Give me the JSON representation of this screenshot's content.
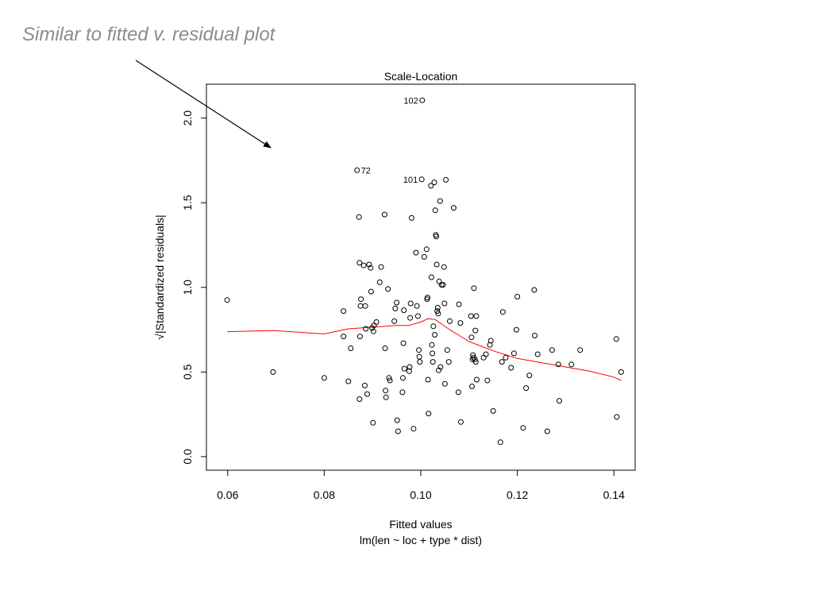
{
  "slide": {
    "title": "Similar to fitted v. residual plot"
  },
  "chart_data": {
    "type": "scatter",
    "title": "Scale-Location",
    "xlabel": "Fitted values",
    "subtitle": "lm(len ~ loc + type * dist)",
    "ylabel": "√|Standardized residuals|",
    "xlim": [
      0.0556,
      0.1444
    ],
    "ylim": [
      -0.08,
      2.2
    ],
    "x_ticks": [
      0.06,
      0.08,
      0.1,
      0.12,
      0.14
    ],
    "x_tick_labels": [
      "0.06",
      "0.08",
      "0.10",
      "0.12",
      "0.14"
    ],
    "y_ticks": [
      0.0,
      0.5,
      1.0,
      1.5,
      2.0
    ],
    "y_tick_labels": [
      "0.0",
      "0.5",
      "1.0",
      "1.5",
      "2.0"
    ],
    "grid": false,
    "point_color": "#000000",
    "smooth_color": "#ff0000",
    "annotations": [
      {
        "label": "102",
        "x": 0.1003,
        "y": 2.105
      },
      {
        "label": "72",
        "x": 0.0868,
        "y": 1.692
      },
      {
        "label": "101",
        "x": 0.1002,
        "y": 1.638
      }
    ],
    "points": [
      [
        0.0599,
        0.925
      ],
      [
        0.0694,
        0.5
      ],
      [
        0.08,
        0.465
      ],
      [
        0.084,
        0.86
      ],
      [
        0.084,
        0.71
      ],
      [
        0.085,
        0.445
      ],
      [
        0.0855,
        0.64
      ],
      [
        0.0868,
        1.692
      ],
      [
        0.0872,
        1.415
      ],
      [
        0.0873,
        1.145
      ],
      [
        0.0875,
        0.89
      ],
      [
        0.0876,
        0.93
      ],
      [
        0.0874,
        0.71
      ],
      [
        0.0873,
        0.34
      ],
      [
        0.0882,
        1.13
      ],
      [
        0.0885,
        0.89
      ],
      [
        0.0886,
        0.755
      ],
      [
        0.0884,
        0.42
      ],
      [
        0.0889,
        0.37
      ],
      [
        0.0893,
        1.135
      ],
      [
        0.0896,
        1.115
      ],
      [
        0.0897,
        0.975
      ],
      [
        0.0899,
        0.76
      ],
      [
        0.0902,
        0.74
      ],
      [
        0.0903,
        0.775
      ],
      [
        0.0901,
        0.2
      ],
      [
        0.0908,
        0.795
      ],
      [
        0.0915,
        1.03
      ],
      [
        0.0918,
        1.12
      ],
      [
        0.0925,
        1.43
      ],
      [
        0.0926,
        0.64
      ],
      [
        0.0927,
        0.39
      ],
      [
        0.0928,
        0.35
      ],
      [
        0.0932,
        0.99
      ],
      [
        0.0934,
        0.465
      ],
      [
        0.0936,
        0.45
      ],
      [
        0.0945,
        0.8
      ],
      [
        0.0947,
        0.875
      ],
      [
        0.095,
        0.91
      ],
      [
        0.0951,
        0.215
      ],
      [
        0.0953,
        0.15
      ],
      [
        0.0962,
        0.38
      ],
      [
        0.0963,
        0.465
      ],
      [
        0.0964,
        0.67
      ],
      [
        0.0965,
        0.865
      ],
      [
        0.0966,
        0.52
      ],
      [
        0.0976,
        0.505
      ],
      [
        0.0977,
        0.53
      ],
      [
        0.0978,
        0.82
      ],
      [
        0.0979,
        0.905
      ],
      [
        0.0981,
        1.41
      ],
      [
        0.0985,
        0.165
      ],
      [
        0.099,
        1.205
      ],
      [
        0.0992,
        0.89
      ],
      [
        0.0994,
        0.83
      ],
      [
        0.0996,
        0.63
      ],
      [
        0.0997,
        0.59
      ],
      [
        0.0998,
        0.56
      ],
      [
        0.1002,
        1.638
      ],
      [
        0.1003,
        2.105
      ],
      [
        0.1007,
        1.18
      ],
      [
        0.1012,
        1.225
      ],
      [
        0.1013,
        0.93
      ],
      [
        0.1014,
        0.94
      ],
      [
        0.1015,
        0.455
      ],
      [
        0.1016,
        0.255
      ],
      [
        0.1021,
        1.6
      ],
      [
        0.1022,
        1.06
      ],
      [
        0.1023,
        0.66
      ],
      [
        0.1024,
        0.61
      ],
      [
        0.1025,
        0.56
      ],
      [
        0.1026,
        0.77
      ],
      [
        0.1028,
        1.62
      ],
      [
        0.1029,
        0.72
      ],
      [
        0.103,
        1.455
      ],
      [
        0.1031,
        1.31
      ],
      [
        0.1032,
        1.3
      ],
      [
        0.1033,
        1.135
      ],
      [
        0.1034,
        0.86
      ],
      [
        0.1035,
        0.88
      ],
      [
        0.1036,
        0.845
      ],
      [
        0.1037,
        0.51
      ],
      [
        0.1038,
        1.035
      ],
      [
        0.104,
        1.51
      ],
      [
        0.1041,
        0.53
      ],
      [
        0.1043,
        1.015
      ],
      [
        0.1046,
        1.015
      ],
      [
        0.1048,
        1.12
      ],
      [
        0.1049,
        0.905
      ],
      [
        0.105,
        0.43
      ],
      [
        0.1052,
        1.635
      ],
      [
        0.1055,
        0.63
      ],
      [
        0.1058,
        0.56
      ],
      [
        0.106,
        0.8
      ],
      [
        0.1068,
        1.47
      ],
      [
        0.1078,
        0.38
      ],
      [
        0.1079,
        0.9
      ],
      [
        0.1082,
        0.79
      ],
      [
        0.1083,
        0.205
      ],
      [
        0.1104,
        0.83
      ],
      [
        0.1105,
        0.705
      ],
      [
        0.1106,
        0.415
      ],
      [
        0.1107,
        0.575
      ],
      [
        0.1108,
        0.6
      ],
      [
        0.1109,
        0.585
      ],
      [
        0.111,
        0.995
      ],
      [
        0.1112,
        0.575
      ],
      [
        0.1113,
        0.745
      ],
      [
        0.1114,
        0.56
      ],
      [
        0.1115,
        0.83
      ],
      [
        0.1116,
        0.455
      ],
      [
        0.113,
        0.585
      ],
      [
        0.1135,
        0.605
      ],
      [
        0.1138,
        0.45
      ],
      [
        0.1143,
        0.66
      ],
      [
        0.1145,
        0.685
      ],
      [
        0.115,
        0.27
      ],
      [
        0.1165,
        0.085
      ],
      [
        0.1168,
        0.56
      ],
      [
        0.117,
        0.855
      ],
      [
        0.1176,
        0.585
      ],
      [
        0.1187,
        0.525
      ],
      [
        0.1193,
        0.61
      ],
      [
        0.1198,
        0.75
      ],
      [
        0.12,
        0.945
      ],
      [
        0.1212,
        0.17
      ],
      [
        0.1218,
        0.405
      ],
      [
        0.1225,
        0.48
      ],
      [
        0.1235,
        0.985
      ],
      [
        0.1236,
        0.715
      ],
      [
        0.1242,
        0.605
      ],
      [
        0.1262,
        0.15
      ],
      [
        0.1272,
        0.63
      ],
      [
        0.1285,
        0.545
      ],
      [
        0.1287,
        0.33
      ],
      [
        0.1312,
        0.545
      ],
      [
        0.133,
        0.63
      ],
      [
        0.1405,
        0.695
      ],
      [
        0.1406,
        0.235
      ],
      [
        0.1415,
        0.5
      ]
    ],
    "smooth_line": [
      [
        0.0599,
        0.738
      ],
      [
        0.0694,
        0.745
      ],
      [
        0.08,
        0.725
      ],
      [
        0.085,
        0.755
      ],
      [
        0.09,
        0.765
      ],
      [
        0.095,
        0.775
      ],
      [
        0.0975,
        0.775
      ],
      [
        0.1,
        0.795
      ],
      [
        0.1015,
        0.815
      ],
      [
        0.103,
        0.81
      ],
      [
        0.106,
        0.75
      ],
      [
        0.108,
        0.715
      ],
      [
        0.11,
        0.68
      ],
      [
        0.115,
        0.625
      ],
      [
        0.12,
        0.58
      ],
      [
        0.125,
        0.555
      ],
      [
        0.13,
        0.53
      ],
      [
        0.135,
        0.505
      ],
      [
        0.14,
        0.47
      ],
      [
        0.1415,
        0.45
      ]
    ]
  }
}
